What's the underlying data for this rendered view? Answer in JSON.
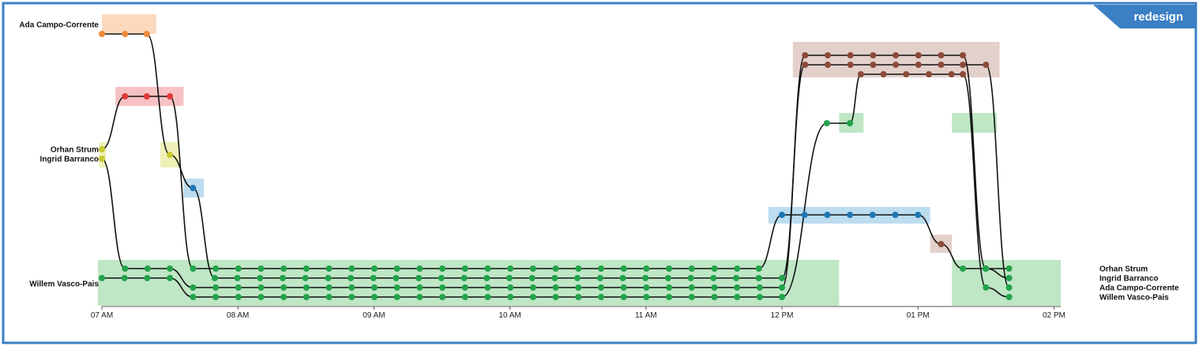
{
  "badge": {
    "text": "redesign"
  },
  "chart_data": {
    "type": "line",
    "title": "",
    "xlabel": "",
    "ylabel": "",
    "x_ticks": [
      "07 AM",
      "08 AM",
      "09 AM",
      "10 AM",
      "11 AM",
      "12 PM",
      "01 PM",
      "02 PM"
    ],
    "x_range_hours": [
      7.0,
      14.05
    ],
    "grid": false,
    "legend": "none",
    "people": [
      "Ada Campo-Corrente",
      "Orhan Strum",
      "Ingrid Barranco",
      "Willem Vasco-Pais"
    ],
    "start_labels": [
      "Ada Campo-Corrente",
      "Orhan Strum",
      "Ingrid Barranco",
      "Willem Vasco-Pais"
    ],
    "end_labels": [
      "Orhan Strum",
      "Ingrid Barranco",
      "Ada Campo-Corrente",
      "Willem Vasco-Pais"
    ],
    "location_colors": {
      "orange": "#f0883a",
      "red": "#e03a3e",
      "olive": "#c5c832",
      "blue": "#1f77b4",
      "green": "#22a34a",
      "brown": "#8c4a3a"
    },
    "location_band_colors": {
      "orange": "#fcd9bd",
      "red": "#f7c1c3",
      "olive": "#eef0b8",
      "blue": "#bcdcef",
      "green": "#bfe6c5",
      "brown": "#e3d0cb"
    },
    "series": [
      {
        "name": "Ada Campo-Corrente",
        "points": [
          [
            7.0,
            "orange",
            1
          ],
          [
            7.17,
            "orange",
            1
          ],
          [
            7.33,
            "orange",
            1
          ],
          [
            7.5,
            "olive",
            0
          ],
          [
            7.67,
            "blue",
            0
          ],
          [
            7.83,
            "green",
            1
          ],
          [
            12.0,
            "green",
            1
          ],
          [
            12.17,
            "brown",
            1
          ],
          [
            13.33,
            "brown",
            1
          ],
          [
            13.5,
            "brown",
            1
          ],
          [
            13.67,
            "green",
            2
          ]
        ]
      },
      {
        "name": "Orhan Strum",
        "points": [
          [
            7.0,
            "olive",
            0
          ],
          [
            7.17,
            "red",
            0
          ],
          [
            7.33,
            "red",
            0
          ],
          [
            7.5,
            "red",
            0
          ],
          [
            7.67,
            "green",
            0
          ],
          [
            11.83,
            "green",
            0
          ],
          [
            12.0,
            "blue",
            0
          ],
          [
            13.0,
            "blue",
            0
          ],
          [
            13.17,
            "brown",
            0
          ],
          [
            13.33,
            "green",
            0
          ],
          [
            13.67,
            "green",
            0
          ]
        ]
      },
      {
        "name": "Ingrid Barranco",
        "points": [
          [
            7.0,
            "olive",
            1
          ],
          [
            7.17,
            "green",
            0
          ],
          [
            7.5,
            "green",
            0
          ],
          [
            7.67,
            "green",
            2
          ],
          [
            12.0,
            "green",
            2
          ],
          [
            12.17,
            "brown",
            0
          ],
          [
            13.33,
            "brown",
            0
          ],
          [
            13.5,
            "green",
            0
          ],
          [
            13.67,
            "green",
            1
          ]
        ]
      },
      {
        "name": "Willem Vasco-Pais",
        "points": [
          [
            7.0,
            "green",
            1
          ],
          [
            7.5,
            "green",
            1
          ],
          [
            7.67,
            "green",
            3
          ],
          [
            12.0,
            "green",
            3
          ],
          [
            12.33,
            "green",
            4
          ],
          [
            12.5,
            "green",
            4
          ],
          [
            12.58,
            "brown",
            2
          ],
          [
            13.33,
            "brown",
            2
          ],
          [
            13.5,
            "green",
            3
          ],
          [
            13.67,
            "green",
            3
          ]
        ]
      }
    ]
  }
}
